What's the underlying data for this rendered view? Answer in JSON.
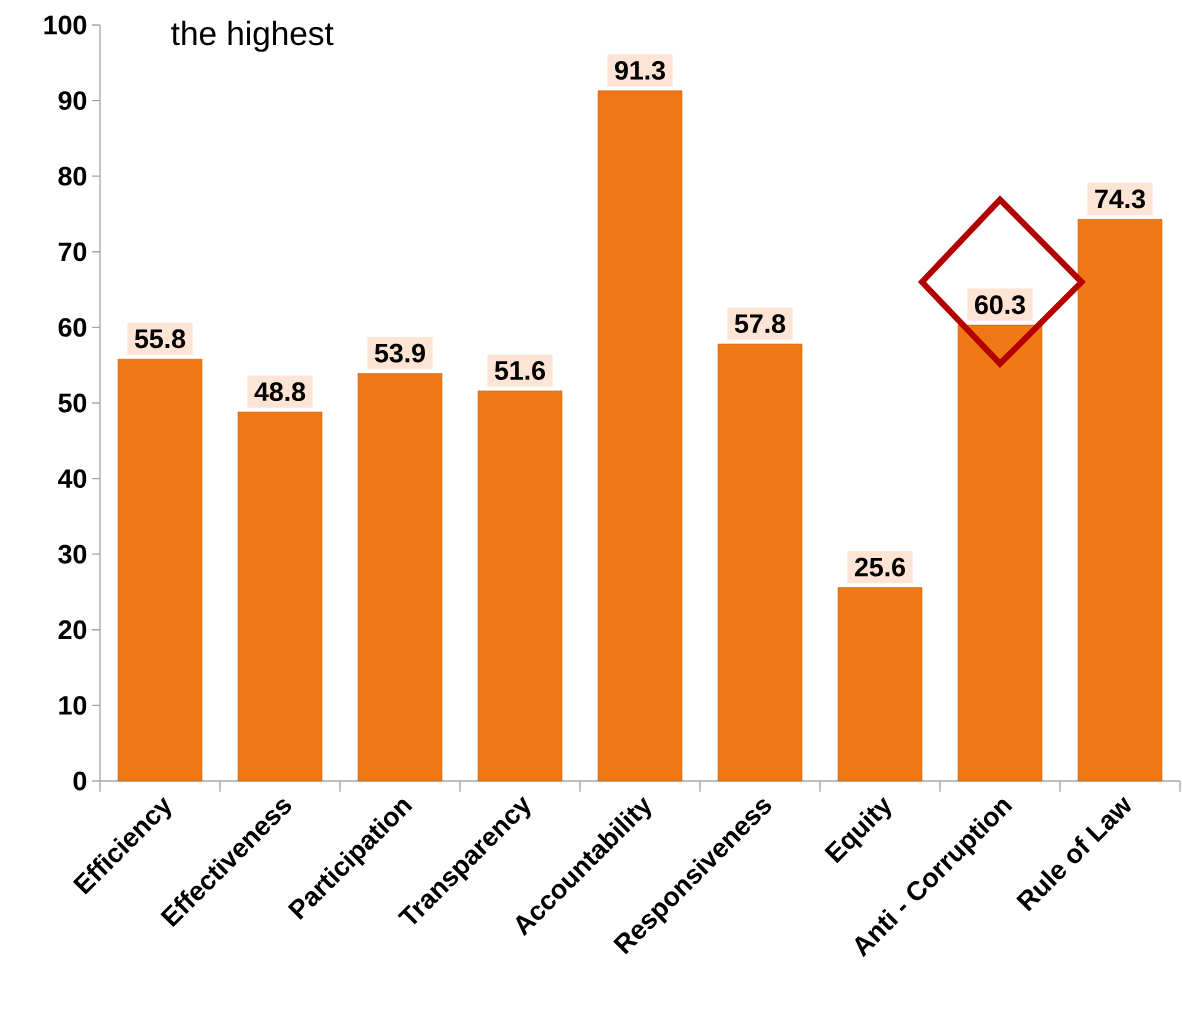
{
  "chart_data": {
    "type": "bar",
    "categories": [
      "Efficiency",
      "Effectiveness",
      "Participation",
      "Transparency",
      "Accountability",
      "Responsiveness",
      "Equity",
      "Anti - Corruption",
      "Rule of Law"
    ],
    "values": [
      55.8,
      48.8,
      53.9,
      51.6,
      91.3,
      57.8,
      25.6,
      60.3,
      74.3
    ],
    "color": "#f07814",
    "ylim": [
      0,
      100
    ],
    "yticks": [
      0,
      10,
      20,
      30,
      40,
      50,
      60,
      70,
      80,
      90,
      100
    ],
    "grid": false,
    "data_labels": true,
    "annotations": [
      "the highest"
    ]
  }
}
